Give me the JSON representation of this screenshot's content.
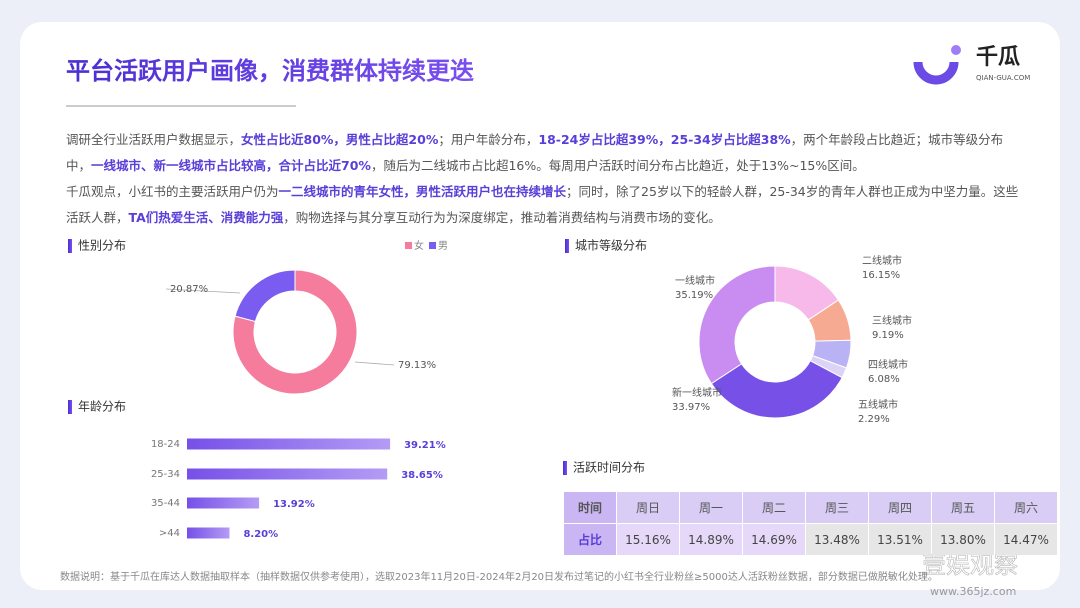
{
  "header": {
    "title": "平台活跃用户画像，消费群体持续更迭",
    "logo": "千瓜",
    "logo_sub": "QIAN-GUA.COM"
  },
  "paragraphs": [
    {
      "segments": [
        {
          "text": "调研全行业活跃用户数据显示，",
          "strong": false
        },
        {
          "text": "女性占比近80%，男性占比超20%",
          "strong": true
        },
        {
          "text": "；用户年龄分布，",
          "strong": false
        },
        {
          "text": "18-24岁占比超39%，25-34岁占比超38%",
          "strong": true
        },
        {
          "text": "，两个年龄段占比趋近；城市等级分布中，",
          "strong": false
        },
        {
          "text": "一线城市、新一线城市占比较高，合计占比近70%",
          "strong": true
        },
        {
          "text": "，随后为二线城市占比超16%。每周用户活跃时间分布占比趋近，处于13%~15%区间。",
          "strong": false
        }
      ]
    },
    {
      "segments": [
        {
          "text": "千瓜观点，小红书的主要活跃用户仍为",
          "strong": false
        },
        {
          "text": "一二线城市的青年女性，男性活跃用户也在持续增长",
          "strong": true
        },
        {
          "text": "；同时，除了25岁以下的轻龄人群，25-34岁的青年人群也正成为中坚力量。这些活跃人群，",
          "strong": false
        },
        {
          "text": "TA们热爱生活、消费能力强",
          "strong": true
        },
        {
          "text": "，购物选择与其分享互动行为为深度绑定，推动着消费结构与消费市场的变化。",
          "strong": false
        }
      ]
    }
  ],
  "chart_data": [
    {
      "type": "donut",
      "title": "性别分布",
      "categories": [
        "女",
        "男"
      ],
      "values": [
        79.13,
        20.87
      ],
      "value_labels": [
        "79.13%",
        "20.87%"
      ],
      "colors": [
        "#f57c9c",
        "#7b5cf0"
      ],
      "legend": "top-right"
    },
    {
      "type": "hbar",
      "title": "年龄分布",
      "categories": [
        "18-24",
        "25-34",
        "35-44",
        ">44"
      ],
      "values": [
        39.21,
        38.65,
        13.92,
        8.2
      ],
      "value_labels": [
        "39.21%",
        "38.65%",
        "13.92%",
        "8.20%"
      ],
      "color": "#7b52ea"
    },
    {
      "type": "donut",
      "title": "城市等级分布",
      "categories": [
        "二线城市",
        "三线城市",
        "四线城市",
        "五线城市",
        "新一线城市",
        "一线城市"
      ],
      "values": [
        16.15,
        9.19,
        6.08,
        2.29,
        33.97,
        35.19
      ],
      "value_labels": [
        "16.15%",
        "9.19%",
        "6.08%",
        "2.29%",
        "33.97%",
        "35.19%"
      ],
      "colors": [
        "#f6b9ea",
        "#f6aa92",
        "#b9b2f4",
        "#dcd4f7",
        "#7750e8",
        "#c98cf1"
      ]
    }
  ],
  "table": {
    "title": "活跃时间分布",
    "header": [
      "时间",
      "周日",
      "周一",
      "周二",
      "周三",
      "周四",
      "周五",
      "周六"
    ],
    "rows": [
      [
        "占比",
        "15.16%",
        "14.89%",
        "14.69%",
        "13.48%",
        "13.51%",
        "13.80%",
        "14.47%"
      ]
    ]
  },
  "footnote": "数据说明：基于千瓜在库达人数据抽取样本（抽样数据仅供参考使用），选取2023年11月20日-2024年2月20日发布过笔记的小红书全行业粉丝≥5000达人活跃粉丝数据，部分数据已做脱敏化处理。",
  "watermark": {
    "text": "壹娱观察",
    "url": "www.365jz.com"
  }
}
